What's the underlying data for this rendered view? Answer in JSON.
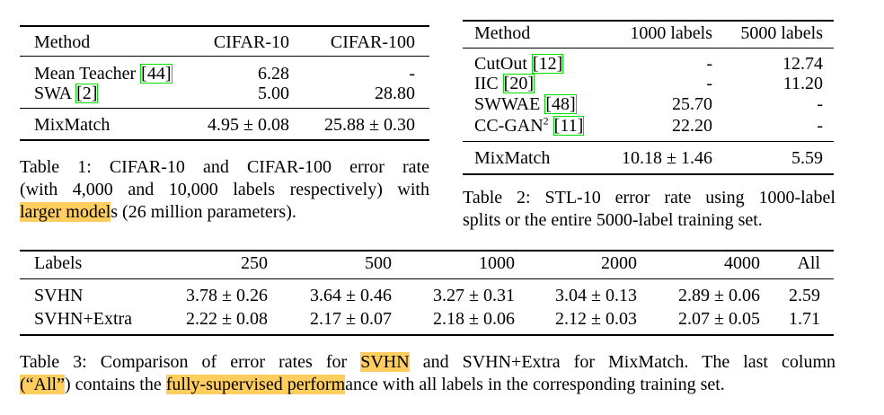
{
  "table1": {
    "header": [
      "Method",
      "CIFAR-10",
      "CIFAR-100"
    ],
    "rows": [
      [
        {
          "text": "Mean Teacher",
          "cite": "[44]"
        },
        "6.28",
        "-"
      ],
      [
        {
          "text": "SWA",
          "cite": "[2]"
        },
        "5.00",
        "28.80"
      ]
    ],
    "mixmatch": [
      "MixMatch",
      "4.95 ± 0.08",
      "25.88 ± 0.30"
    ],
    "caption": [
      [
        {
          "text": "Table 1:  CIFAR-10 and CIFAR-100 error rate"
        }
      ],
      [
        {
          "text": "(with 4,000 and 10,000 labels respectively) with"
        }
      ],
      [
        {
          "text": "larger model",
          "highlight": true
        },
        {
          "text": "s (26 million parameters)."
        }
      ]
    ]
  },
  "table2": {
    "header": [
      "Method",
      "1000 labels",
      "5000 labels"
    ],
    "rows": [
      [
        {
          "text": "CutOut",
          "cite": "[12]"
        },
        "-",
        "12.74"
      ],
      [
        {
          "text": "IIC",
          "cite": "[20]"
        },
        "-",
        "11.20"
      ],
      [
        {
          "text": "SWWAE",
          "cite": "[48]"
        },
        "25.70",
        "-"
      ],
      [
        {
          "text": "CC-GAN",
          "sup": "2",
          "cite": "[11]"
        },
        "22.20",
        "-"
      ]
    ],
    "mixmatch": [
      "MixMatch",
      "10.18 ± 1.46",
      "5.59"
    ],
    "caption": [
      [
        {
          "text": "Table 2:  STL-10 error rate using 1000-label"
        }
      ],
      [
        {
          "text": "splits or the entire 5000-label training set."
        }
      ]
    ]
  },
  "table3": {
    "header": [
      "Labels",
      "250",
      "500",
      "1000",
      "2000",
      "4000",
      "All"
    ],
    "rows": [
      [
        "SVHN",
        "3.78 ± 0.26",
        "3.64 ± 0.46",
        "3.27 ± 0.31",
        "3.04 ± 0.13",
        "2.89 ± 0.06",
        "2.59"
      ],
      [
        "SVHN+Extra",
        "2.22 ± 0.08",
        "2.17 ± 0.07",
        "2.18 ± 0.06",
        "2.12 ± 0.03",
        "2.07 ± 0.05",
        "1.71"
      ]
    ],
    "caption": [
      [
        {
          "text": "Table 3: Comparison of error rates for "
        },
        {
          "text": "SVHN",
          "highlight": true
        },
        {
          "text": " and SVHN+Extra for MixMatch.  The last column"
        }
      ],
      [
        {
          "text": "(“All”",
          "highlight": true
        },
        {
          "text": ") contains the "
        },
        {
          "text": "fully-supervised perform",
          "highlight": true
        },
        {
          "text": "ance with all labels in the corresponding training set."
        }
      ]
    ]
  }
}
